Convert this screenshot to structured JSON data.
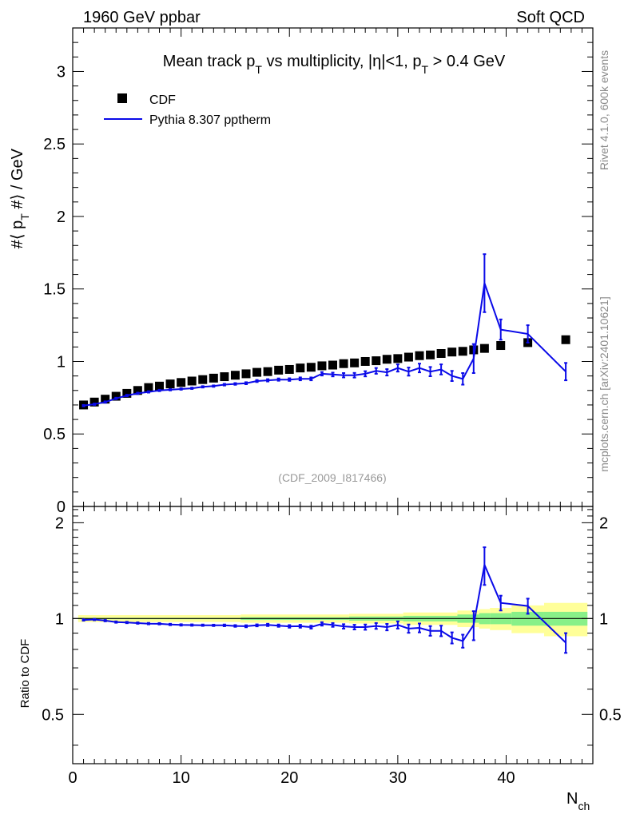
{
  "header": {
    "left_label": "1960 GeV ppbar",
    "right_label": "Soft QCD"
  },
  "side_labels": {
    "rivet": "Rivet 4.1.0,  600k events",
    "mcplots": "mcplots.cern.ch [arXiv:2401.10621]"
  },
  "chart_data": [
    {
      "type": "scatter",
      "title": "Mean track p_T vs multiplicity, |η|<1, p_T > 0.4 GeV",
      "title_parts": {
        "pre": "Mean track p",
        "sub1": "T",
        "mid": " vs multiplicity, |η|<1, p",
        "sub2": "T",
        "post": " > 0.4 GeV"
      },
      "ylabel": "#⟨ p_T #⟩ / GeV",
      "ylabel_parts": {
        "pre": "#⟨ p",
        "sub": "T",
        "post": " #⟩ / GeV"
      },
      "xlabel": "",
      "xlim": [
        0,
        48
      ],
      "ylim": [
        0,
        3.3
      ],
      "x_ticks": [
        0,
        10,
        20,
        30,
        40
      ],
      "y_ticks": [
        0,
        0.5,
        1,
        1.5,
        2,
        2.5,
        3
      ],
      "y_tick_labels": [
        "0",
        "0.5",
        "1",
        "1.5",
        "2",
        "2.5",
        "3"
      ],
      "analysis_label": "(CDF_2009_I817466)",
      "legend": {
        "position": "top-left",
        "entries": [
          "CDF",
          "Pythia 8.307 pptherm"
        ]
      },
      "series": [
        {
          "name": "CDF",
          "style": "markers",
          "color": "#000000",
          "x": [
            1,
            2,
            3,
            4,
            5,
            6,
            7,
            8,
            9,
            10,
            11,
            12,
            13,
            14,
            15,
            16,
            17,
            18,
            19,
            20,
            21,
            22,
            23,
            24,
            25,
            26,
            27,
            28,
            29,
            30,
            31,
            32,
            33,
            34,
            35,
            36,
            37,
            38,
            39.5,
            42,
            45.5
          ],
          "y": [
            0.7,
            0.72,
            0.74,
            0.76,
            0.78,
            0.8,
            0.82,
            0.83,
            0.845,
            0.855,
            0.865,
            0.875,
            0.885,
            0.895,
            0.905,
            0.915,
            0.925,
            0.93,
            0.94,
            0.945,
            0.955,
            0.96,
            0.97,
            0.975,
            0.985,
            0.99,
            1.0,
            1.005,
            1.015,
            1.02,
            1.03,
            1.04,
            1.045,
            1.055,
            1.065,
            1.07,
            1.08,
            1.09,
            1.11,
            1.13,
            1.15
          ]
        },
        {
          "name": "Pythia 8.307 pptherm",
          "style": "line",
          "color": "#0a0ae8",
          "x": [
            1,
            2,
            3,
            4,
            5,
            6,
            7,
            8,
            9,
            10,
            11,
            12,
            13,
            14,
            15,
            16,
            17,
            18,
            19,
            20,
            21,
            22,
            23,
            24,
            25,
            26,
            27,
            28,
            29,
            30,
            31,
            32,
            33,
            34,
            35,
            36,
            37,
            38,
            39.5,
            42,
            45.5
          ],
          "y": [
            0.695,
            0.705,
            0.72,
            0.745,
            0.765,
            0.78,
            0.79,
            0.8,
            0.805,
            0.81,
            0.815,
            0.825,
            0.83,
            0.84,
            0.845,
            0.85,
            0.865,
            0.87,
            0.875,
            0.875,
            0.88,
            0.88,
            0.915,
            0.91,
            0.905,
            0.905,
            0.915,
            0.935,
            0.925,
            0.955,
            0.93,
            0.955,
            0.93,
            0.945,
            0.9,
            0.88,
            1.02,
            1.54,
            1.22,
            1.19,
            0.93
          ],
          "err": [
            0.005,
            0.005,
            0.005,
            0.005,
            0.005,
            0.005,
            0.005,
            0.005,
            0.005,
            0.005,
            0.005,
            0.005,
            0.005,
            0.006,
            0.006,
            0.007,
            0.007,
            0.008,
            0.008,
            0.009,
            0.01,
            0.01,
            0.012,
            0.013,
            0.015,
            0.016,
            0.018,
            0.02,
            0.022,
            0.025,
            0.028,
            0.03,
            0.032,
            0.035,
            0.035,
            0.04,
            0.1,
            0.2,
            0.07,
            0.06,
            0.06
          ]
        }
      ]
    },
    {
      "type": "line",
      "title": "",
      "ylabel": "Ratio to CDF",
      "xlabel": "N_ch",
      "xlabel_parts": {
        "pre": "N",
        "sub": "ch"
      },
      "xlim": [
        0,
        48
      ],
      "ylim": [
        0.35,
        2.25
      ],
      "x_ticks": [
        0,
        10,
        20,
        30,
        40
      ],
      "x_tick_labels": [
        "0",
        "10",
        "20",
        "30",
        "40"
      ],
      "y_ticks": [
        0.5,
        1,
        2
      ],
      "y_tick_labels": [
        "0.5",
        "1",
        "2"
      ],
      "reference_line": 1,
      "uncertainty_bands": {
        "stat_color": "#88f088",
        "total_color": "#ffff99",
        "bins": [
          {
            "x0": 0.5,
            "x1": 15.5,
            "stat": 0.005,
            "total": 0.025
          },
          {
            "x0": 15.5,
            "x1": 25.5,
            "stat": 0.01,
            "total": 0.03
          },
          {
            "x0": 25.5,
            "x1": 30.5,
            "stat": 0.015,
            "total": 0.035
          },
          {
            "x0": 30.5,
            "x1": 35.5,
            "stat": 0.02,
            "total": 0.045
          },
          {
            "x0": 35.5,
            "x1": 37.5,
            "stat": 0.03,
            "total": 0.06
          },
          {
            "x0": 37.5,
            "x1": 38.5,
            "stat": 0.04,
            "total": 0.07
          },
          {
            "x0": 38.5,
            "x1": 40.5,
            "stat": 0.04,
            "total": 0.08
          },
          {
            "x0": 40.5,
            "x1": 43.5,
            "stat": 0.05,
            "total": 0.1
          },
          {
            "x0": 43.5,
            "x1": 47.5,
            "stat": 0.05,
            "total": 0.12
          }
        ]
      },
      "series": [
        {
          "name": "Pythia 8.307 pptherm / CDF",
          "style": "line",
          "color": "#0a0ae8",
          "x": [
            1,
            2,
            3,
            4,
            5,
            6,
            7,
            8,
            9,
            10,
            11,
            12,
            13,
            14,
            15,
            16,
            17,
            18,
            19,
            20,
            21,
            22,
            23,
            24,
            25,
            26,
            27,
            28,
            29,
            30,
            31,
            32,
            33,
            34,
            35,
            36,
            37,
            38,
            39.5,
            42,
            45.5
          ],
          "y": [
            0.99,
            0.993,
            0.985,
            0.975,
            0.972,
            0.968,
            0.964,
            0.963,
            0.958,
            0.955,
            0.954,
            0.953,
            0.952,
            0.952,
            0.948,
            0.946,
            0.952,
            0.955,
            0.95,
            0.945,
            0.946,
            0.94,
            0.962,
            0.955,
            0.945,
            0.94,
            0.94,
            0.948,
            0.94,
            0.955,
            0.93,
            0.935,
            0.915,
            0.915,
            0.87,
            0.85,
            0.955,
            1.475,
            1.12,
            1.095,
            0.84
          ],
          "err": [
            0.005,
            0.005,
            0.005,
            0.005,
            0.005,
            0.005,
            0.005,
            0.005,
            0.005,
            0.005,
            0.005,
            0.005,
            0.005,
            0.006,
            0.006,
            0.007,
            0.007,
            0.008,
            0.008,
            0.009,
            0.01,
            0.01,
            0.012,
            0.013,
            0.015,
            0.016,
            0.018,
            0.02,
            0.022,
            0.025,
            0.028,
            0.03,
            0.032,
            0.035,
            0.035,
            0.04,
            0.1,
            0.2,
            0.06,
            0.06,
            0.06
          ]
        }
      ]
    }
  ]
}
